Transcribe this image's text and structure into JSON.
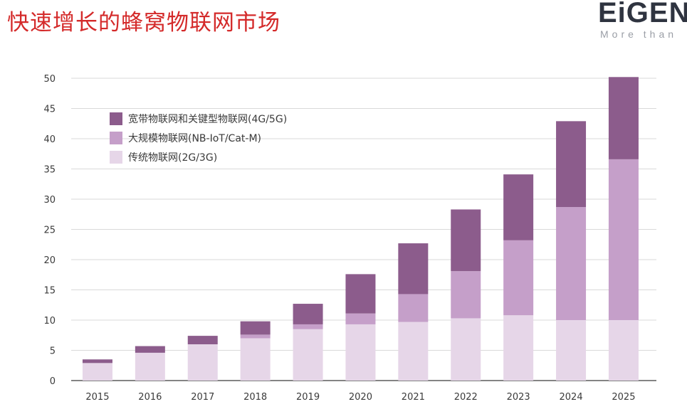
{
  "page": {
    "title": "快速增长的蜂窝物联网市场",
    "logo_text": "EiGENC",
    "logo_tagline": "More than"
  },
  "chart_data": {
    "type": "bar",
    "stacked": true,
    "title": "",
    "xlabel": "",
    "ylabel": "",
    "ylim": [
      0,
      50
    ],
    "yticks": [
      0,
      5,
      10,
      15,
      20,
      25,
      30,
      35,
      40,
      45,
      50
    ],
    "grid": true,
    "legend_position": "top-left",
    "categories": [
      "2015",
      "2016",
      "2017",
      "2018",
      "2019",
      "2020",
      "2021",
      "2022",
      "2023",
      "2024",
      "2025"
    ],
    "series": [
      {
        "name": "传统物联网(2G/3G)",
        "color": "#e6d6e8",
        "values": [
          2.9,
          4.6,
          6.0,
          7.0,
          8.5,
          9.3,
          9.7,
          10.3,
          10.8,
          10.0,
          10.0
        ]
      },
      {
        "name": "大规模物联网(NB-IoT/Cat-M)",
        "color": "#c59fc9",
        "values": [
          0,
          0,
          0,
          0.6,
          0.8,
          1.8,
          4.6,
          7.8,
          12.4,
          18.7,
          26.6
        ]
      },
      {
        "name": "宽带物联网和关键型物联网(4G/5G)",
        "color": "#8c5c8c",
        "values": [
          0.6,
          1.1,
          1.4,
          2.2,
          3.4,
          6.5,
          8.4,
          10.2,
          10.9,
          14.2,
          13.6
        ]
      }
    ],
    "legend_order": [
      2,
      1,
      0
    ]
  }
}
